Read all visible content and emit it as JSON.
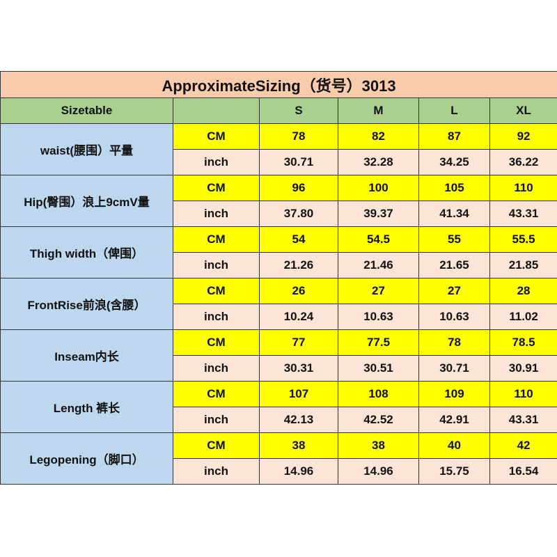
{
  "title": "ApproximateSizing（货号）3013",
  "header": {
    "first": "Sizetable",
    "unit": "",
    "sizes": [
      "S",
      "M",
      "L",
      "XL"
    ]
  },
  "rows": [
    {
      "label": "waist(腰围）平量",
      "cm": [
        "78",
        "82",
        "87",
        "92"
      ],
      "inch": [
        "30.71",
        "32.28",
        "34.25",
        "36.22"
      ]
    },
    {
      "label": "Hip(臀围）浪上9cmV量",
      "cm": [
        "96",
        "100",
        "105",
        "110"
      ],
      "inch": [
        "37.80",
        "39.37",
        "41.34",
        "43.31"
      ]
    },
    {
      "label": "Thigh width（俾围）",
      "cm": [
        "54",
        "54.5",
        "55",
        "55.5"
      ],
      "inch": [
        "21.26",
        "21.46",
        "21.65",
        "21.85"
      ]
    },
    {
      "label": "FrontRise前浪(含腰）",
      "cm": [
        "26",
        "27",
        "27",
        "28"
      ],
      "inch": [
        "10.24",
        "10.63",
        "10.63",
        "11.02"
      ]
    },
    {
      "label": "Inseam内长",
      "cm": [
        "77",
        "77.5",
        "78",
        "78.5"
      ],
      "inch": [
        "30.31",
        "30.51",
        "30.71",
        "30.91"
      ]
    },
    {
      "label": "Length 裤长",
      "cm": [
        "107",
        "108",
        "109",
        "110"
      ],
      "inch": [
        "42.13",
        "42.52",
        "42.91",
        "43.31"
      ]
    },
    {
      "label": "Legopening（脚口）",
      "cm": [
        "38",
        "38",
        "40",
        "42"
      ],
      "inch": [
        "14.96",
        "14.96",
        "15.75",
        "16.54"
      ]
    }
  ],
  "units": {
    "cm": "CM",
    "inch": "inch"
  }
}
